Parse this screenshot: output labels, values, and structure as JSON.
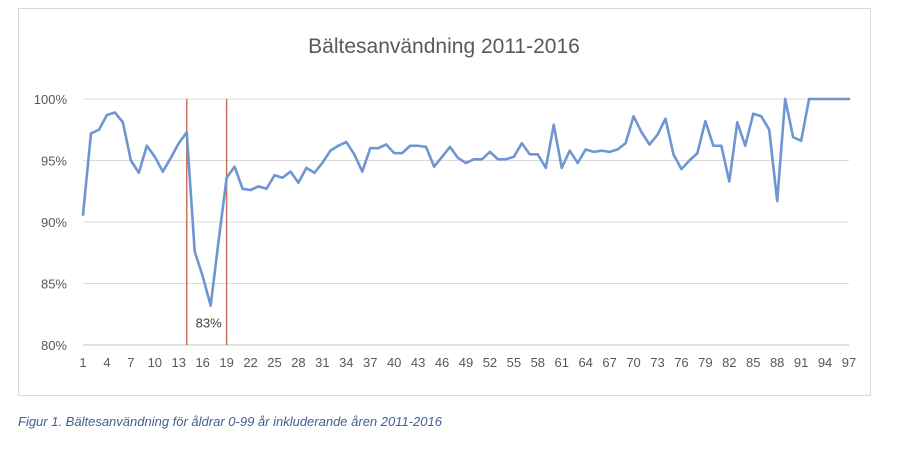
{
  "caption": "Figur 1. Bältesanvändning för åldrar 0-99 år inkluderande åren 2011-2016",
  "chart_data": {
    "type": "line",
    "title": "Bältesanvändning 2011-2016",
    "xlabel": "",
    "ylabel": "",
    "ylim": [
      0.8,
      1.0
    ],
    "yticks": [
      "80%",
      "85%",
      "90%",
      "95%",
      "100%"
    ],
    "xticks": [
      1,
      4,
      7,
      10,
      13,
      16,
      19,
      22,
      25,
      28,
      31,
      34,
      37,
      40,
      43,
      46,
      49,
      52,
      55,
      58,
      61,
      64,
      67,
      70,
      73,
      76,
      79,
      82,
      85,
      88,
      91,
      94,
      97
    ],
    "grid": true,
    "legend": "none",
    "line_color": "#6f96d2",
    "marker_color": "#c8735a",
    "vertical_markers": [
      14,
      19
    ],
    "annotations": [
      {
        "x": 17,
        "text": "83%"
      }
    ],
    "x": [
      1,
      2,
      3,
      4,
      5,
      6,
      7,
      8,
      9,
      10,
      11,
      12,
      13,
      14,
      15,
      16,
      17,
      18,
      19,
      20,
      21,
      22,
      23,
      24,
      25,
      26,
      27,
      28,
      29,
      30,
      31,
      32,
      33,
      34,
      35,
      36,
      37,
      38,
      39,
      40,
      41,
      42,
      43,
      44,
      45,
      46,
      47,
      48,
      49,
      50,
      51,
      52,
      53,
      54,
      55,
      56,
      57,
      58,
      59,
      60,
      61,
      62,
      63,
      64,
      65,
      66,
      67,
      68,
      69,
      70,
      71,
      72,
      73,
      74,
      75,
      76,
      77,
      78,
      79,
      80,
      81,
      82,
      83,
      84,
      85,
      86,
      87,
      88,
      89,
      90,
      91,
      92,
      93,
      94,
      95,
      96,
      97
    ],
    "values": [
      0.906,
      0.972,
      0.975,
      0.987,
      0.989,
      0.981,
      0.95,
      0.94,
      0.962,
      0.953,
      0.941,
      0.952,
      0.964,
      0.973,
      0.876,
      0.856,
      0.832,
      0.885,
      0.936,
      0.945,
      0.927,
      0.926,
      0.929,
      0.927,
      0.938,
      0.936,
      0.941,
      0.932,
      0.944,
      0.94,
      0.948,
      0.958,
      0.962,
      0.965,
      0.955,
      0.941,
      0.96,
      0.96,
      0.963,
      0.956,
      0.956,
      0.962,
      0.962,
      0.961,
      0.945,
      0.953,
      0.961,
      0.952,
      0.948,
      0.951,
      0.951,
      0.957,
      0.951,
      0.951,
      0.953,
      0.964,
      0.955,
      0.955,
      0.944,
      0.979,
      0.944,
      0.958,
      0.948,
      0.959,
      0.957,
      0.958,
      0.957,
      0.959,
      0.964,
      0.986,
      0.973,
      0.963,
      0.971,
      0.984,
      0.955,
      0.943,
      0.95,
      0.956,
      0.982,
      0.962,
      0.962,
      0.933,
      0.981,
      0.962,
      0.988,
      0.986,
      0.975,
      0.917,
      1.0,
      0.969,
      0.966,
      1.0,
      1.0,
      1.0,
      1.0,
      1.0,
      1.0
    ]
  }
}
